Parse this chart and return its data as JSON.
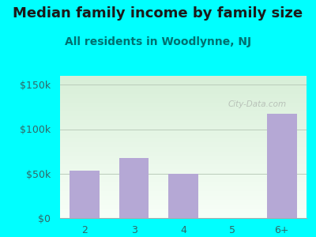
{
  "title": "Median family income by family size",
  "subtitle": "All residents in Woodlynne, NJ",
  "categories": [
    "2",
    "3",
    "4",
    "5",
    "6+"
  ],
  "values": [
    53000,
    68000,
    50000,
    0,
    117000
  ],
  "bar_color": "#b5a8d5",
  "background_color": "#00FFFF",
  "plot_bg_top": "#d8efd8",
  "plot_bg_bottom": "#f8fff8",
  "yticks": [
    0,
    50000,
    100000,
    150000
  ],
  "ytick_labels": [
    "$0",
    "$50k",
    "$100k",
    "$150k"
  ],
  "ylim": [
    0,
    160000
  ],
  "title_fontsize": 13,
  "subtitle_fontsize": 10,
  "title_color": "#1a1a1a",
  "subtitle_color": "#007070",
  "tick_color": "#336666",
  "watermark": "City-Data.com"
}
